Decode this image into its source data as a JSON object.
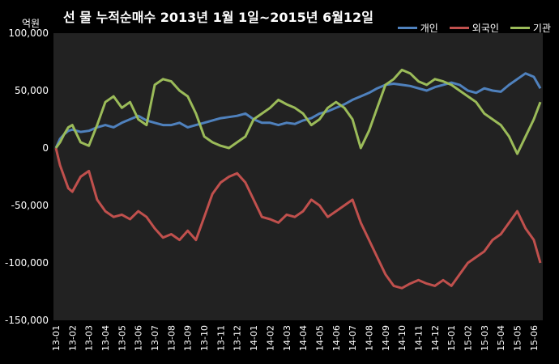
{
  "chart_data": {
    "type": "line",
    "title": "선 물 누적순매수 2013년 1월 1일~2015년 6월12일",
    "unit": "억원",
    "ylim": [
      -150000,
      100000
    ],
    "yticks": [
      100000,
      50000,
      0,
      -50000,
      -100000,
      -150000
    ],
    "ytick_labels": [
      "100,000",
      "50,000",
      "0",
      "-50,000",
      "-100,000",
      "-150,000"
    ],
    "xticks": [
      "13-01",
      "13-02",
      "13-03",
      "13-04",
      "13-05",
      "13-06",
      "13-07",
      "13-08",
      "13-09",
      "13-10",
      "13-11",
      "13-12",
      "14-01",
      "14-02",
      "14-03",
      "14-04",
      "14-05",
      "14-06",
      "14-07",
      "14-08",
      "14-09",
      "14-10",
      "14-11",
      "14-12",
      "15-01",
      "15-02",
      "15-03",
      "15-04",
      "15-05",
      "15-06"
    ],
    "grid": false,
    "legend_position": "top-right",
    "series": [
      {
        "name": "개인",
        "color": "#4f81bd",
        "x": [
          0,
          0.25,
          0.5,
          0.75,
          1,
          1.5,
          2,
          2.5,
          3,
          3.5,
          4,
          4.5,
          5,
          5.5,
          6,
          6.5,
          7,
          7.5,
          8,
          8.5,
          9,
          9.5,
          10,
          10.5,
          11,
          11.5,
          12,
          12.5,
          13,
          13.5,
          14,
          14.5,
          15,
          15.5,
          16,
          16.5,
          17,
          17.5,
          18,
          18.5,
          19,
          19.5,
          20,
          20.5,
          21,
          21.5,
          22,
          22.5,
          23,
          23.5,
          24,
          24.5,
          25,
          25.5,
          26,
          26.5,
          27,
          27.5,
          28,
          28.5,
          29,
          29.4
        ],
        "values": [
          0,
          8000,
          12000,
          15000,
          16000,
          14000,
          15000,
          18000,
          20000,
          18000,
          22000,
          25000,
          28000,
          24000,
          22000,
          20000,
          20000,
          22000,
          18000,
          20000,
          22000,
          24000,
          26000,
          27000,
          28000,
          30000,
          25000,
          22000,
          22000,
          20000,
          22000,
          21000,
          24000,
          26000,
          30000,
          32000,
          35000,
          38000,
          42000,
          45000,
          48000,
          52000,
          55000,
          56000,
          55000,
          54000,
          52000,
          50000,
          53000,
          55000,
          57000,
          55000,
          50000,
          48000,
          52000,
          50000,
          49000,
          55000,
          60000,
          65000,
          62000,
          52000
        ]
      },
      {
        "name": "외국인",
        "color": "#c0504d",
        "x": [
          0,
          0.25,
          0.5,
          0.75,
          1,
          1.5,
          2,
          2.5,
          3,
          3.5,
          4,
          4.5,
          5,
          5.5,
          6,
          6.5,
          7,
          7.5,
          8,
          8.5,
          9,
          9.5,
          10,
          10.5,
          11,
          11.5,
          12,
          12.5,
          13,
          13.5,
          14,
          14.5,
          15,
          15.5,
          16,
          16.5,
          17,
          17.5,
          18,
          18.5,
          19,
          19.5,
          20,
          20.5,
          21,
          21.5,
          22,
          22.5,
          23,
          23.5,
          24,
          24.5,
          25,
          25.5,
          26,
          26.5,
          27,
          27.5,
          28,
          28.5,
          29,
          29.4
        ],
        "values": [
          0,
          -15000,
          -25000,
          -35000,
          -38000,
          -25000,
          -20000,
          -45000,
          -55000,
          -60000,
          -58000,
          -62000,
          -55000,
          -60000,
          -70000,
          -78000,
          -75000,
          -80000,
          -72000,
          -80000,
          -60000,
          -40000,
          -30000,
          -25000,
          -22000,
          -30000,
          -45000,
          -60000,
          -62000,
          -65000,
          -58000,
          -60000,
          -55000,
          -45000,
          -50000,
          -60000,
          -55000,
          -50000,
          -45000,
          -65000,
          -80000,
          -95000,
          -110000,
          -120000,
          -122000,
          -118000,
          -115000,
          -118000,
          -120000,
          -115000,
          -120000,
          -110000,
          -100000,
          -95000,
          -90000,
          -80000,
          -75000,
          -65000,
          -55000,
          -70000,
          -80000,
          -100000
        ]
      },
      {
        "name": "기관",
        "color": "#9bbb59",
        "x": [
          0,
          0.25,
          0.5,
          0.75,
          1,
          1.5,
          2,
          2.5,
          3,
          3.5,
          4,
          4.5,
          5,
          5.5,
          6,
          6.5,
          7,
          7.5,
          8,
          8.5,
          9,
          9.5,
          10,
          10.5,
          11,
          11.5,
          12,
          12.5,
          13,
          13.5,
          14,
          14.5,
          15,
          15.5,
          16,
          16.5,
          17,
          17.5,
          18,
          18.5,
          19,
          19.5,
          20,
          20.5,
          21,
          21.5,
          22,
          22.5,
          23,
          23.5,
          24,
          24.5,
          25,
          25.5,
          26,
          26.5,
          27,
          27.5,
          28,
          28.5,
          29,
          29.4
        ],
        "values": [
          0,
          5000,
          12000,
          18000,
          20000,
          5000,
          2000,
          20000,
          40000,
          45000,
          35000,
          40000,
          25000,
          20000,
          55000,
          60000,
          58000,
          50000,
          45000,
          30000,
          10000,
          5000,
          2000,
          0,
          5000,
          10000,
          25000,
          30000,
          35000,
          42000,
          38000,
          35000,
          30000,
          20000,
          25000,
          35000,
          40000,
          35000,
          25000,
          0,
          15000,
          35000,
          55000,
          60000,
          68000,
          65000,
          58000,
          55000,
          60000,
          58000,
          55000,
          50000,
          45000,
          40000,
          30000,
          25000,
          20000,
          10000,
          -5000,
          10000,
          25000,
          40000
        ]
      }
    ]
  }
}
